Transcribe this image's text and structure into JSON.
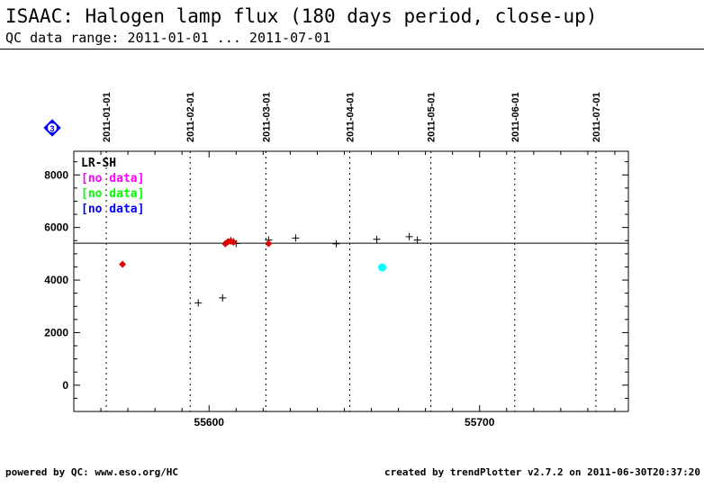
{
  "header": {
    "title": "ISAAC: Halogen lamp flux (180 days period, close-up)",
    "subtitle": "QC data range: 2011-01-01 ... 2011-07-01"
  },
  "footer": {
    "left": "powered by QC: www.eso.org/HC",
    "right": "created by trendPlotter v2.7.2 on 2011-06-30T20:37:20"
  },
  "badge": {
    "label": "3",
    "color": "#0000ff"
  },
  "chart_data": {
    "type": "scatter",
    "xlim": [
      55550,
      55755.0
    ],
    "ylim": [
      -1000,
      8900
    ],
    "x_ticks": [
      55600,
      55700
    ],
    "y_ticks": [
      0,
      2000,
      4000,
      6000,
      8000
    ],
    "date_markers": [
      {
        "label": "2011-01-01",
        "x": 55562
      },
      {
        "label": "2011-02-01",
        "x": 55593
      },
      {
        "label": "2011-03-01",
        "x": 55621
      },
      {
        "label": "2011-04-01",
        "x": 55652
      },
      {
        "label": "2011-05-01",
        "x": 55682
      },
      {
        "label": "2011-06-01",
        "x": 55713
      },
      {
        "label": "2011-07-01",
        "x": 55743
      }
    ],
    "reference_line": 5400,
    "legend": [
      {
        "label": "LR-SH",
        "color": "#000000"
      },
      {
        "label": "[no data]",
        "color": "#ff00ff"
      },
      {
        "label": "[no data]",
        "color": "#00ff00"
      },
      {
        "label": "[no data]",
        "color": "#0000ff"
      }
    ],
    "series": [
      {
        "marker": "plus",
        "color": "#000000",
        "points": [
          [
            55596,
            3130
          ],
          [
            55605,
            3320
          ],
          [
            55608,
            5500
          ],
          [
            55609,
            5460
          ],
          [
            55610,
            5390
          ],
          [
            55622,
            5520
          ],
          [
            55632,
            5600
          ],
          [
            55647,
            5380
          ],
          [
            55662,
            5550
          ],
          [
            55674,
            5650
          ],
          [
            55677,
            5520
          ]
        ]
      },
      {
        "marker": "diamond",
        "color": "#dd0000",
        "points": [
          [
            55568,
            4600
          ],
          [
            55606,
            5380
          ],
          [
            55607,
            5460
          ],
          [
            55608,
            5480
          ],
          [
            55609,
            5440
          ],
          [
            55622,
            5390
          ]
        ]
      },
      {
        "marker": "circle",
        "color": "#00ffff",
        "points": [
          [
            55664,
            4480
          ]
        ]
      }
    ]
  }
}
